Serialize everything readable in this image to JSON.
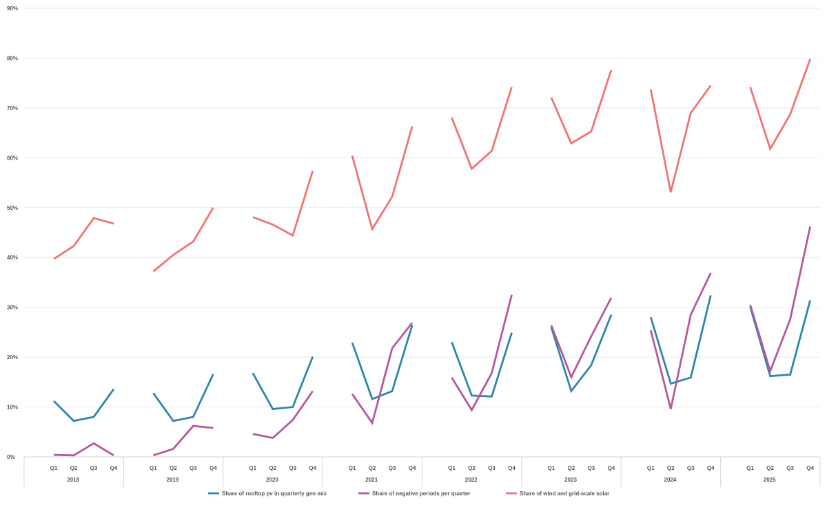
{
  "chart_data": {
    "type": "line",
    "title": "",
    "xlabel": "",
    "ylabel": "",
    "ylim": [
      0,
      90
    ],
    "y_ticks": [
      "0%",
      "10%",
      "20%",
      "30%",
      "40%",
      "50%",
      "60%",
      "70%",
      "80%",
      "90%"
    ],
    "grid": true,
    "legend_position": "bottom",
    "years": [
      "2018",
      "2019",
      "2020",
      "2021",
      "2022",
      "2023",
      "2024",
      "2025"
    ],
    "quarters": [
      "Q1",
      "Q2",
      "Q3",
      "Q4"
    ],
    "series": [
      {
        "name": "Share of rooftop pv in quarterly gen mix",
        "color": "#2E86AB",
        "values": [
          [
            11.2,
            7.2,
            8.0,
            13.6
          ],
          [
            12.8,
            7.2,
            8.0,
            16.6
          ],
          [
            16.8,
            9.6,
            10.0,
            20.1
          ],
          [
            22.9,
            11.6,
            13.2,
            26.4
          ],
          [
            23.0,
            12.3,
            12.1,
            24.9
          ],
          [
            26.0,
            13.2,
            18.4,
            28.5
          ],
          [
            28.0,
            14.7,
            15.9,
            32.4
          ],
          [
            30.1,
            16.2,
            16.5,
            31.4
          ]
        ]
      },
      {
        "name": "Share of negative periods per quarter",
        "color": "#B5589E",
        "values": [
          [
            0.4,
            0.3,
            2.7,
            0.3
          ],
          [
            0.3,
            1.6,
            6.2,
            5.8
          ],
          [
            4.6,
            3.8,
            7.4,
            13.2
          ],
          [
            12.6,
            6.8,
            21.8,
            26.9
          ],
          [
            15.9,
            9.4,
            16.8,
            32.5
          ],
          [
            26.4,
            16.0,
            24.2,
            31.9
          ],
          [
            25.4,
            9.6,
            28.5,
            36.9
          ],
          [
            30.5,
            17.2,
            27.6,
            46.2
          ]
        ]
      },
      {
        "name": "Share of wind and grid-scale solar",
        "color": "#F07470",
        "values": [
          [
            39.7,
            42.3,
            47.9,
            46.8
          ],
          [
            37.2,
            40.5,
            43.2,
            50.0
          ],
          [
            48.1,
            46.6,
            44.4,
            57.4
          ],
          [
            60.4,
            45.7,
            52.2,
            66.3
          ],
          [
            68.1,
            57.8,
            61.4,
            74.2
          ],
          [
            72.1,
            62.9,
            65.3,
            77.6
          ],
          [
            73.7,
            53.1,
            69.0,
            74.5
          ],
          [
            74.2,
            61.8,
            68.7,
            79.8
          ]
        ]
      }
    ]
  }
}
